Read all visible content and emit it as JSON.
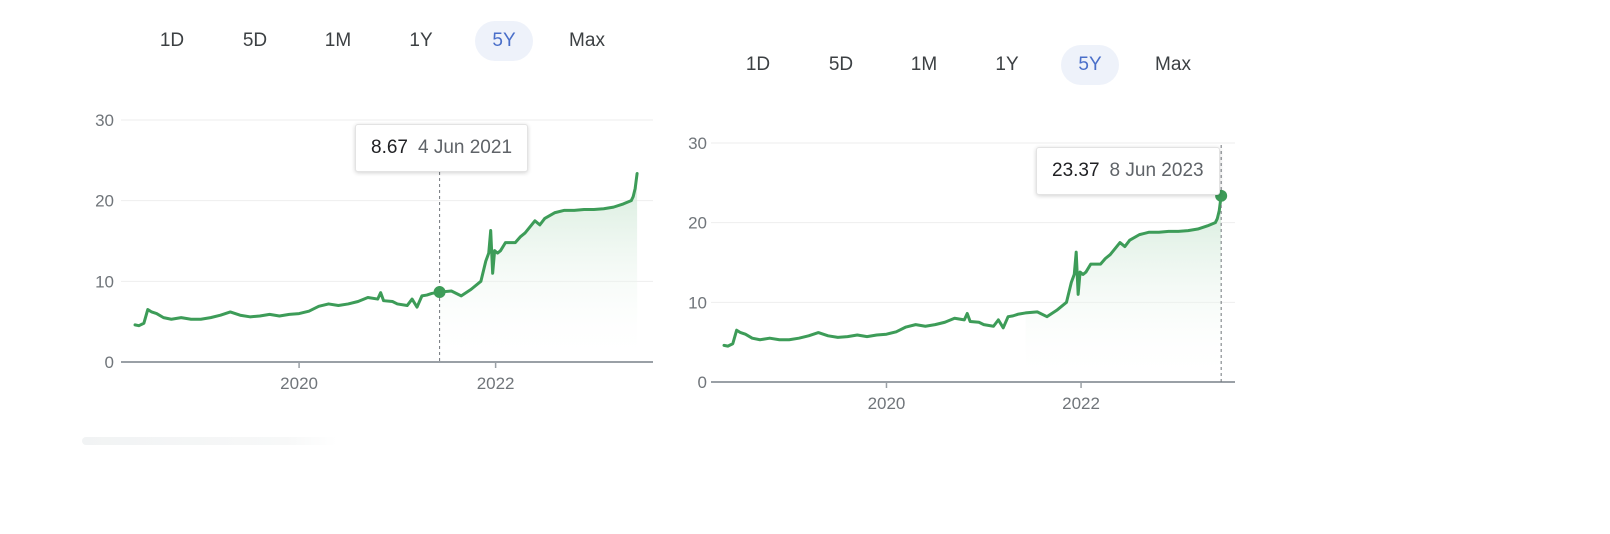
{
  "colors": {
    "series": "#3d9c58",
    "fill_top": "#cfe8d6",
    "active_range": "#4a6fc9"
  },
  "chart_data": [
    {
      "type": "area",
      "range_buttons": [
        "1D",
        "5D",
        "1M",
        "1Y",
        "5Y",
        "Max"
      ],
      "active_range": "5Y",
      "tooltip": {
        "value": "8.67",
        "date": "4 Jun 2021"
      },
      "hover_point": {
        "x": 2021.43,
        "y": 8.67
      },
      "xlim": [
        2018.33,
        2023.5
      ],
      "ylim": [
        0,
        30
      ],
      "y_ticks": [
        0,
        10,
        20,
        30
      ],
      "x_ticks": [
        {
          "value": 2020,
          "label": "2020"
        },
        {
          "value": 2022,
          "label": "2022"
        }
      ],
      "grid": true,
      "series": [
        {
          "x": [
            2018.33,
            2018.37,
            2018.42,
            2018.46,
            2018.5,
            2018.55,
            2018.62,
            2018.7,
            2018.8,
            2018.9,
            2019.0,
            2019.1,
            2019.2,
            2019.3,
            2019.4,
            2019.5,
            2019.6,
            2019.7,
            2019.8,
            2019.9,
            2020.0,
            2020.1,
            2020.2,
            2020.3,
            2020.4,
            2020.5,
            2020.6,
            2020.7,
            2020.8,
            2020.83,
            2020.86,
            2020.95,
            2021.0,
            2021.1,
            2021.15,
            2021.2,
            2021.25,
            2021.3,
            2021.35,
            2021.43,
            2021.55,
            2021.65,
            2021.75,
            2021.85,
            2021.9,
            2021.93,
            2021.95,
            2021.97,
            2021.99,
            2022.02,
            2022.05,
            2022.1,
            2022.2,
            2022.25,
            2022.3,
            2022.4,
            2022.45,
            2022.5,
            2022.6,
            2022.7,
            2022.8,
            2022.9,
            2023.0,
            2023.1,
            2023.2,
            2023.3,
            2023.38,
            2023.4,
            2023.42,
            2023.44
          ],
          "y": [
            4.6,
            4.5,
            4.8,
            6.5,
            6.2,
            6.0,
            5.5,
            5.3,
            5.5,
            5.3,
            5.3,
            5.5,
            5.8,
            6.2,
            5.8,
            5.6,
            5.7,
            5.9,
            5.7,
            5.9,
            6.0,
            6.3,
            6.9,
            7.2,
            7.0,
            7.2,
            7.5,
            8.0,
            7.8,
            8.6,
            7.6,
            7.5,
            7.2,
            7.0,
            7.8,
            6.8,
            8.2,
            8.3,
            8.5,
            8.67,
            8.8,
            8.2,
            9.0,
            10.0,
            12.5,
            13.5,
            16.3,
            11.0,
            13.8,
            13.5,
            13.8,
            14.8,
            14.8,
            15.5,
            16.0,
            17.5,
            17.0,
            17.8,
            18.5,
            18.8,
            18.8,
            18.9,
            18.9,
            19.0,
            19.2,
            19.6,
            20.0,
            20.5,
            21.5,
            23.37
          ]
        }
      ]
    },
    {
      "type": "area",
      "range_buttons": [
        "1D",
        "5D",
        "1M",
        "1Y",
        "5Y",
        "Max"
      ],
      "active_range": "5Y",
      "tooltip": {
        "value": "23.37",
        "date": "8 Jun 2023"
      },
      "hover_point": {
        "x": 2023.44,
        "y": 23.37
      },
      "xlim": [
        2018.33,
        2023.5
      ],
      "ylim": [
        0,
        30
      ],
      "y_ticks": [
        0,
        10,
        20,
        30
      ],
      "x_ticks": [
        {
          "value": 2020,
          "label": "2020"
        },
        {
          "value": 2022,
          "label": "2022"
        }
      ],
      "grid": true,
      "series": [
        {
          "x": [
            2018.33,
            2018.37,
            2018.42,
            2018.46,
            2018.5,
            2018.55,
            2018.62,
            2018.7,
            2018.8,
            2018.9,
            2019.0,
            2019.1,
            2019.2,
            2019.3,
            2019.4,
            2019.5,
            2019.6,
            2019.7,
            2019.8,
            2019.9,
            2020.0,
            2020.1,
            2020.2,
            2020.3,
            2020.4,
            2020.5,
            2020.6,
            2020.7,
            2020.8,
            2020.83,
            2020.86,
            2020.95,
            2021.0,
            2021.1,
            2021.15,
            2021.2,
            2021.25,
            2021.3,
            2021.35,
            2021.43,
            2021.55,
            2021.65,
            2021.75,
            2021.85,
            2021.9,
            2021.93,
            2021.95,
            2021.97,
            2021.99,
            2022.02,
            2022.05,
            2022.1,
            2022.2,
            2022.25,
            2022.3,
            2022.4,
            2022.45,
            2022.5,
            2022.6,
            2022.7,
            2022.8,
            2022.9,
            2023.0,
            2023.1,
            2023.2,
            2023.3,
            2023.38,
            2023.4,
            2023.42,
            2023.44
          ],
          "y": [
            4.6,
            4.5,
            4.8,
            6.5,
            6.2,
            6.0,
            5.5,
            5.3,
            5.5,
            5.3,
            5.3,
            5.5,
            5.8,
            6.2,
            5.8,
            5.6,
            5.7,
            5.9,
            5.7,
            5.9,
            6.0,
            6.3,
            6.9,
            7.2,
            7.0,
            7.2,
            7.5,
            8.0,
            7.8,
            8.6,
            7.6,
            7.5,
            7.2,
            7.0,
            7.8,
            6.8,
            8.2,
            8.3,
            8.5,
            8.67,
            8.8,
            8.2,
            9.0,
            10.0,
            12.5,
            13.5,
            16.3,
            11.0,
            13.8,
            13.5,
            13.8,
            14.8,
            14.8,
            15.5,
            16.0,
            17.5,
            17.0,
            17.8,
            18.5,
            18.8,
            18.8,
            18.9,
            18.9,
            19.0,
            19.2,
            19.6,
            20.0,
            20.5,
            21.5,
            23.37
          ]
        }
      ]
    }
  ]
}
